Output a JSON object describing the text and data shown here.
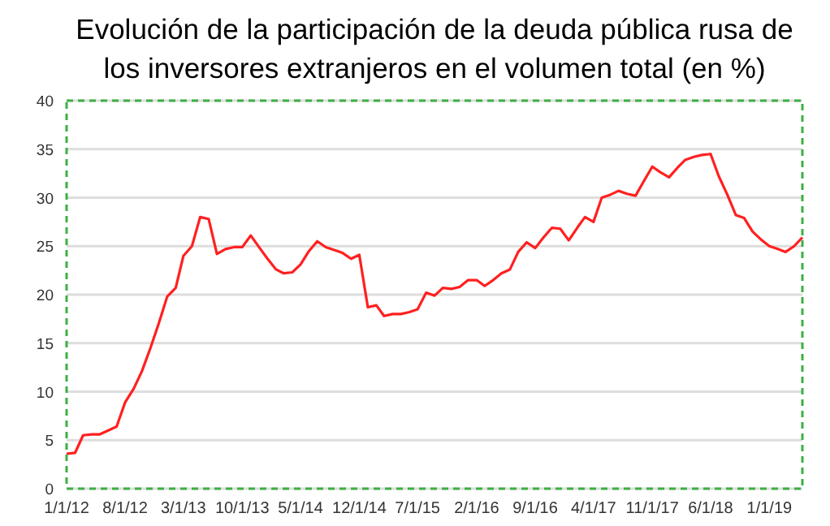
{
  "chart_data": {
    "type": "line",
    "title": "Evolución de la participación de la deuda pública rusa de los inversores extranjeros en el volumen total (en %)",
    "x": [
      "2012-01",
      "2012-02",
      "2012-03",
      "2012-04",
      "2012-05",
      "2012-06",
      "2012-07",
      "2012-08",
      "2012-09",
      "2012-10",
      "2012-11",
      "2012-12",
      "2013-01",
      "2013-02",
      "2013-03",
      "2013-04",
      "2013-05",
      "2013-06",
      "2013-07",
      "2013-08",
      "2013-09",
      "2013-10",
      "2013-11",
      "2013-12",
      "2014-01",
      "2014-02",
      "2014-03",
      "2014-04",
      "2014-05",
      "2014-06",
      "2014-07",
      "2014-08",
      "2014-09",
      "2014-10",
      "2014-11",
      "2014-12",
      "2015-01",
      "2015-02",
      "2015-03",
      "2015-04",
      "2015-05",
      "2015-06",
      "2015-07",
      "2015-08",
      "2015-09",
      "2015-10",
      "2015-11",
      "2015-12",
      "2016-01",
      "2016-02",
      "2016-03",
      "2016-04",
      "2016-05",
      "2016-06",
      "2016-07",
      "2016-08",
      "2016-09",
      "2016-10",
      "2016-11",
      "2016-12",
      "2017-01",
      "2017-02",
      "2017-03",
      "2017-04",
      "2017-05",
      "2017-06",
      "2017-07",
      "2017-08",
      "2017-09",
      "2017-10",
      "2017-11",
      "2017-12",
      "2018-01",
      "2018-02",
      "2018-03",
      "2018-04",
      "2018-05",
      "2018-06",
      "2018-07",
      "2018-08",
      "2018-09",
      "2018-10",
      "2018-11",
      "2018-12",
      "2019-01",
      "2019-02",
      "2019-03",
      "2019-04",
      "2019-05"
    ],
    "series": [
      {
        "color": "#ff2020",
        "values": [
          3.6,
          3.7,
          5.5,
          5.6,
          5.6,
          6.0,
          6.4,
          8.9,
          10.3,
          12.1,
          14.5,
          17.0,
          19.8,
          20.7,
          24.0,
          25.0,
          28.0,
          27.8,
          24.2,
          24.7,
          24.9,
          24.9,
          26.1,
          24.9,
          23.7,
          22.6,
          22.2,
          22.3,
          23.1,
          24.5,
          25.5,
          24.9,
          24.6,
          24.3,
          23.7,
          24.1,
          18.7,
          18.9,
          17.8,
          18.0,
          18.0,
          18.2,
          18.5,
          20.2,
          19.9,
          20.7,
          20.6,
          20.8,
          21.5,
          21.5,
          20.9,
          21.5,
          22.2,
          22.6,
          24.4,
          25.4,
          24.8,
          25.9,
          26.9,
          26.8,
          25.6,
          26.9,
          28.0,
          27.5,
          30.0,
          30.3,
          30.7,
          30.4,
          30.2,
          31.7,
          33.2,
          32.6,
          32.1,
          33.1,
          33.9,
          34.2,
          34.4,
          34.5,
          32.2,
          30.3,
          28.2,
          27.9,
          26.5,
          25.7,
          25.0,
          24.7,
          24.4,
          25.0,
          25.9
        ]
      }
    ],
    "xlim": [
      "2012-01",
      "2019-05"
    ],
    "xticks": [
      {
        "value": "2012-01",
        "label": "1/1/12"
      },
      {
        "value": "2012-08",
        "label": "8/1/12"
      },
      {
        "value": "2013-03",
        "label": "3/1/13"
      },
      {
        "value": "2013-10",
        "label": "10/1/13"
      },
      {
        "value": "2014-05",
        "label": "5/1/14"
      },
      {
        "value": "2014-12",
        "label": "12/1/14"
      },
      {
        "value": "2015-07",
        "label": "7/1/15"
      },
      {
        "value": "2016-02",
        "label": "2/1/16"
      },
      {
        "value": "2016-09",
        "label": "9/1/16"
      },
      {
        "value": "2017-04",
        "label": "4/1/17"
      },
      {
        "value": "2017-11",
        "label": "11/1/17"
      },
      {
        "value": "2018-06",
        "label": "6/1/18"
      },
      {
        "value": "2019-01",
        "label": "1/1/19"
      }
    ],
    "ylim": [
      0,
      40
    ],
    "yticks": [
      0,
      5,
      10,
      15,
      20,
      25,
      30,
      35,
      40
    ],
    "grid": "y",
    "marker": "none",
    "line_style": "solid"
  }
}
